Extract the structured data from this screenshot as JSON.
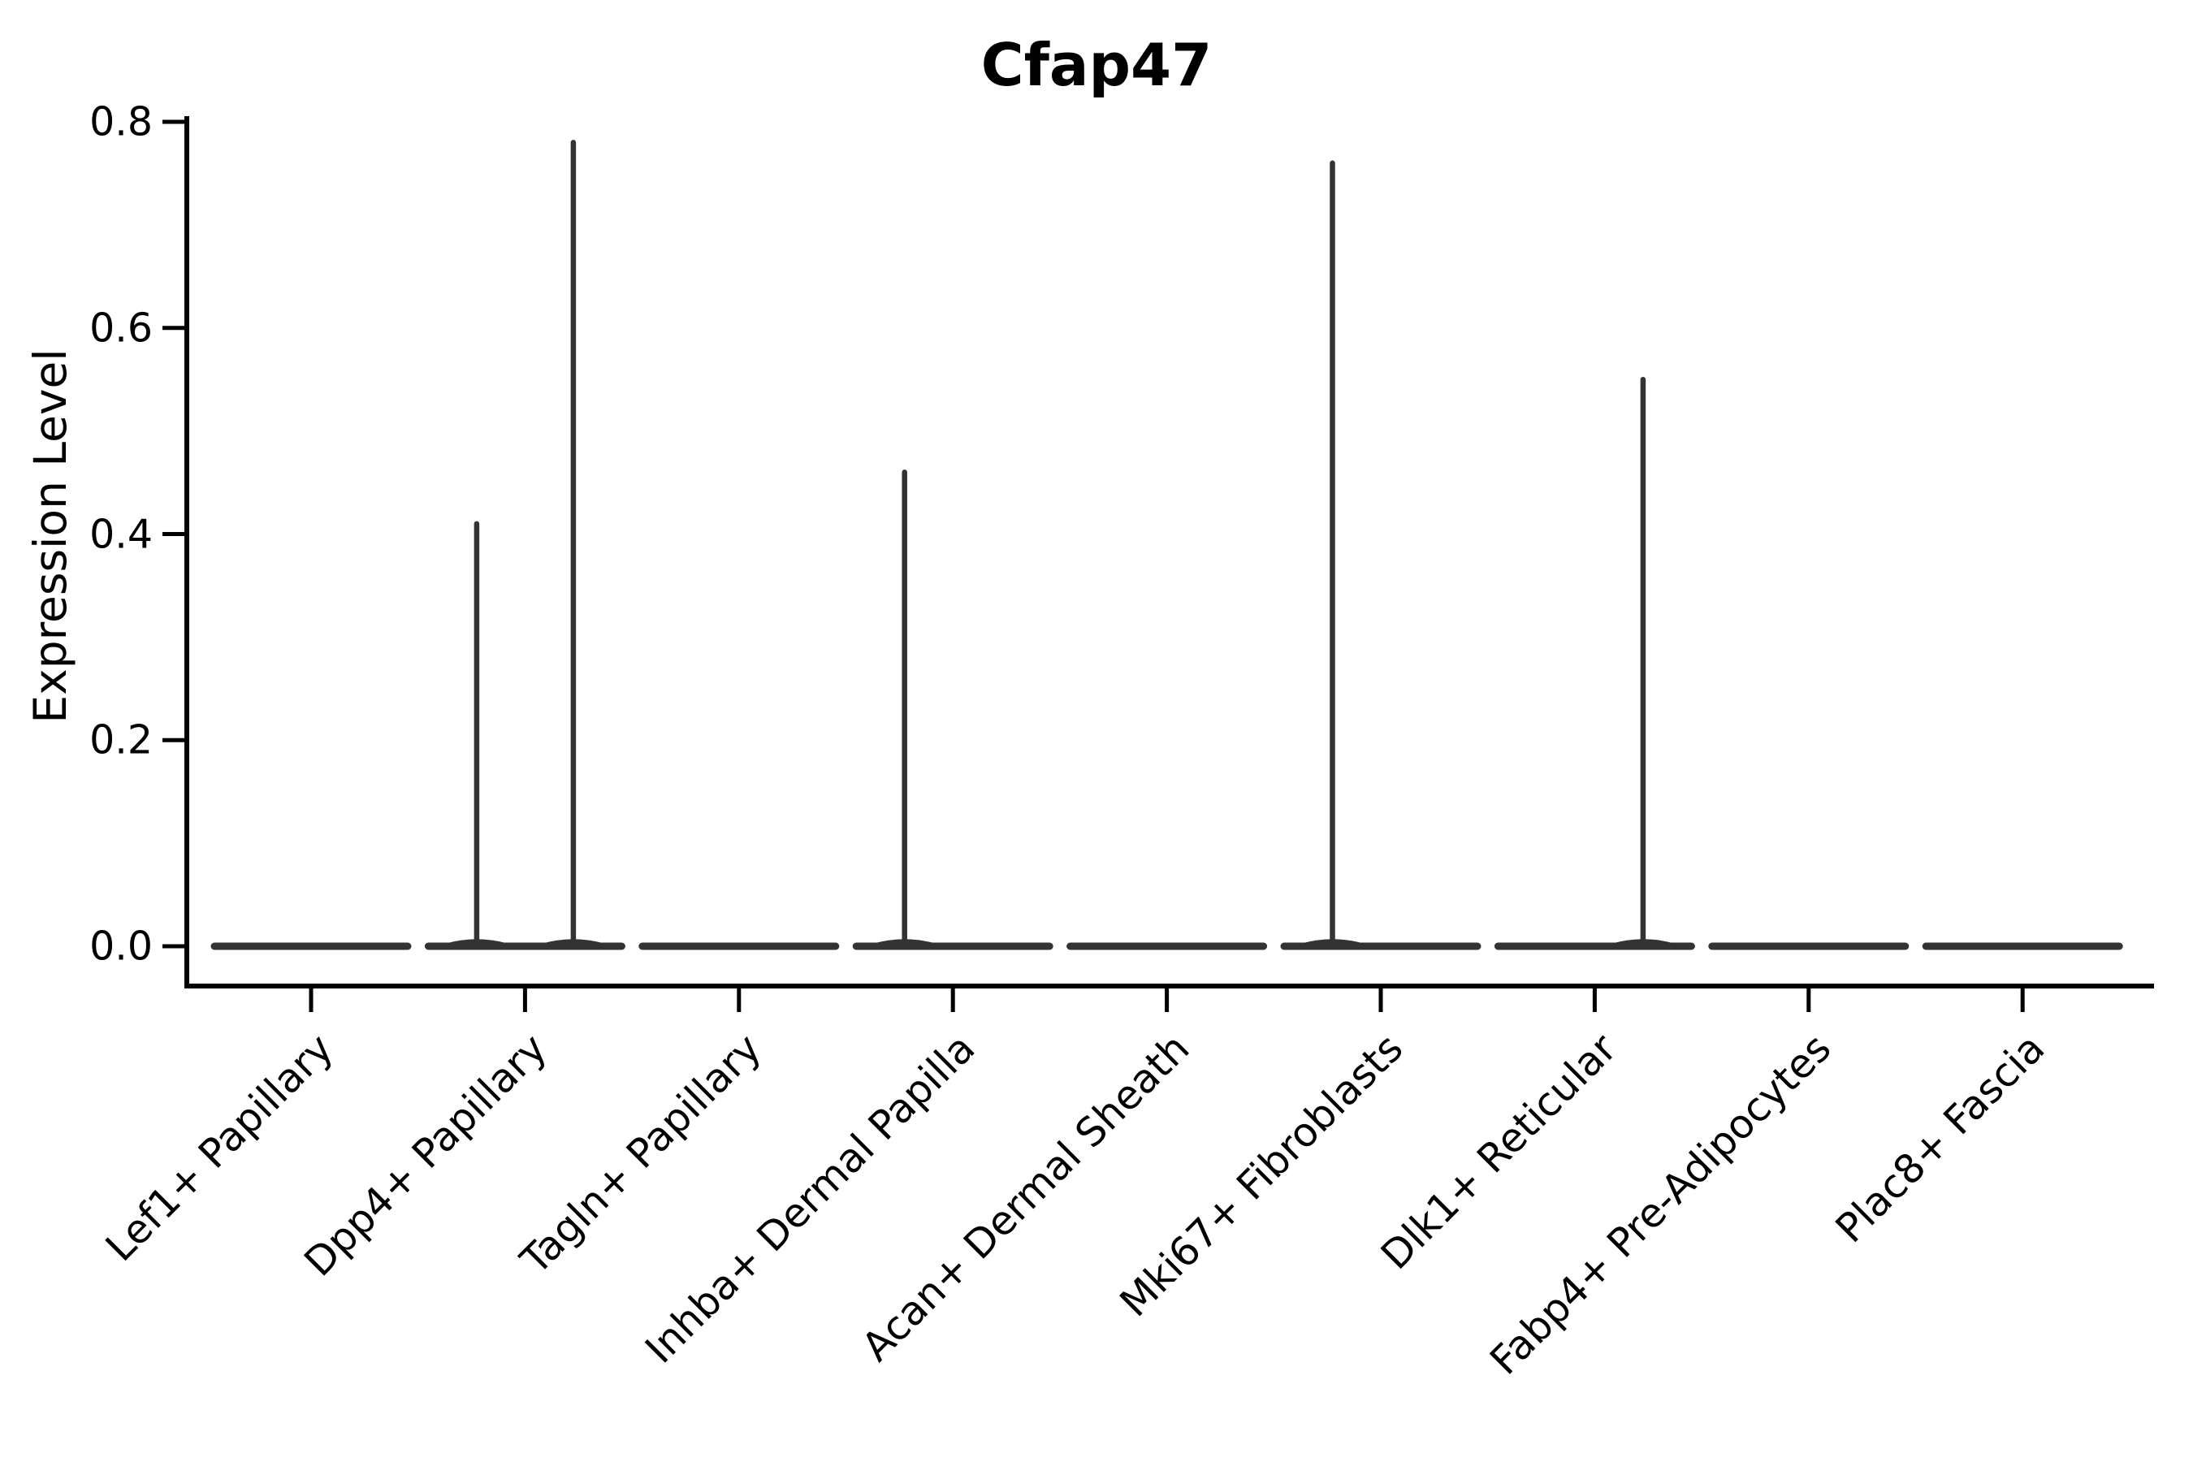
{
  "title": "Cfap47",
  "colors": {
    "background": "#ffffff",
    "violin_stroke": "#333333",
    "axis": "#000000",
    "text": "#000000"
  },
  "chart_data": {
    "type": "violin",
    "title": "Cfap47",
    "xlabel": "",
    "ylabel": "Expression Level",
    "ylim": [
      0.0,
      0.8
    ],
    "yticks": [
      0.0,
      0.2,
      0.4,
      0.6,
      0.8
    ],
    "ytick_labels": [
      "0.0",
      "0.2",
      "0.4",
      "0.6",
      "0.8"
    ],
    "grid": false,
    "legend": "none",
    "categories": [
      "Lef1+ Papillary",
      "Dpp4+ Papillary",
      "Tagln+ Papillary",
      "Inhba+ Dermal Papilla",
      "Acan+ Dermal Sheath",
      "Mki67+ Fibroblasts",
      "Dlk1+ Reticular",
      "Fabp4+ Pre-Adipocytes",
      "Plac8+ Fascia"
    ],
    "description": "Split violin plot; each category holds two side-by-side sub-violins. All densities are concentrated at expression 0 (flat wide base); thin spikes mark sub-violins containing rare expressing cells, reaching the listed maximum expression level.",
    "violins": [
      {
        "category": "Lef1+ Papillary",
        "sub_violin_max": [
          0,
          0
        ]
      },
      {
        "category": "Dpp4+ Papillary",
        "sub_violin_max": [
          0.41,
          0.78
        ]
      },
      {
        "category": "Tagln+ Papillary",
        "sub_violin_max": [
          0,
          0
        ]
      },
      {
        "category": "Inhba+ Dermal Papilla",
        "sub_violin_max": [
          0.46,
          0
        ]
      },
      {
        "category": "Acan+ Dermal Sheath",
        "sub_violin_max": [
          0,
          0
        ]
      },
      {
        "category": "Mki67+ Fibroblasts",
        "sub_violin_max": [
          0.76,
          0
        ]
      },
      {
        "category": "Dlk1+ Reticular",
        "sub_violin_max": [
          0,
          0.55
        ]
      },
      {
        "category": "Fabp4+ Pre-Adipocytes",
        "sub_violin_max": [
          0,
          0
        ]
      },
      {
        "category": "Plac8+ Fascia",
        "sub_violin_max": [
          0,
          0
        ]
      }
    ]
  }
}
